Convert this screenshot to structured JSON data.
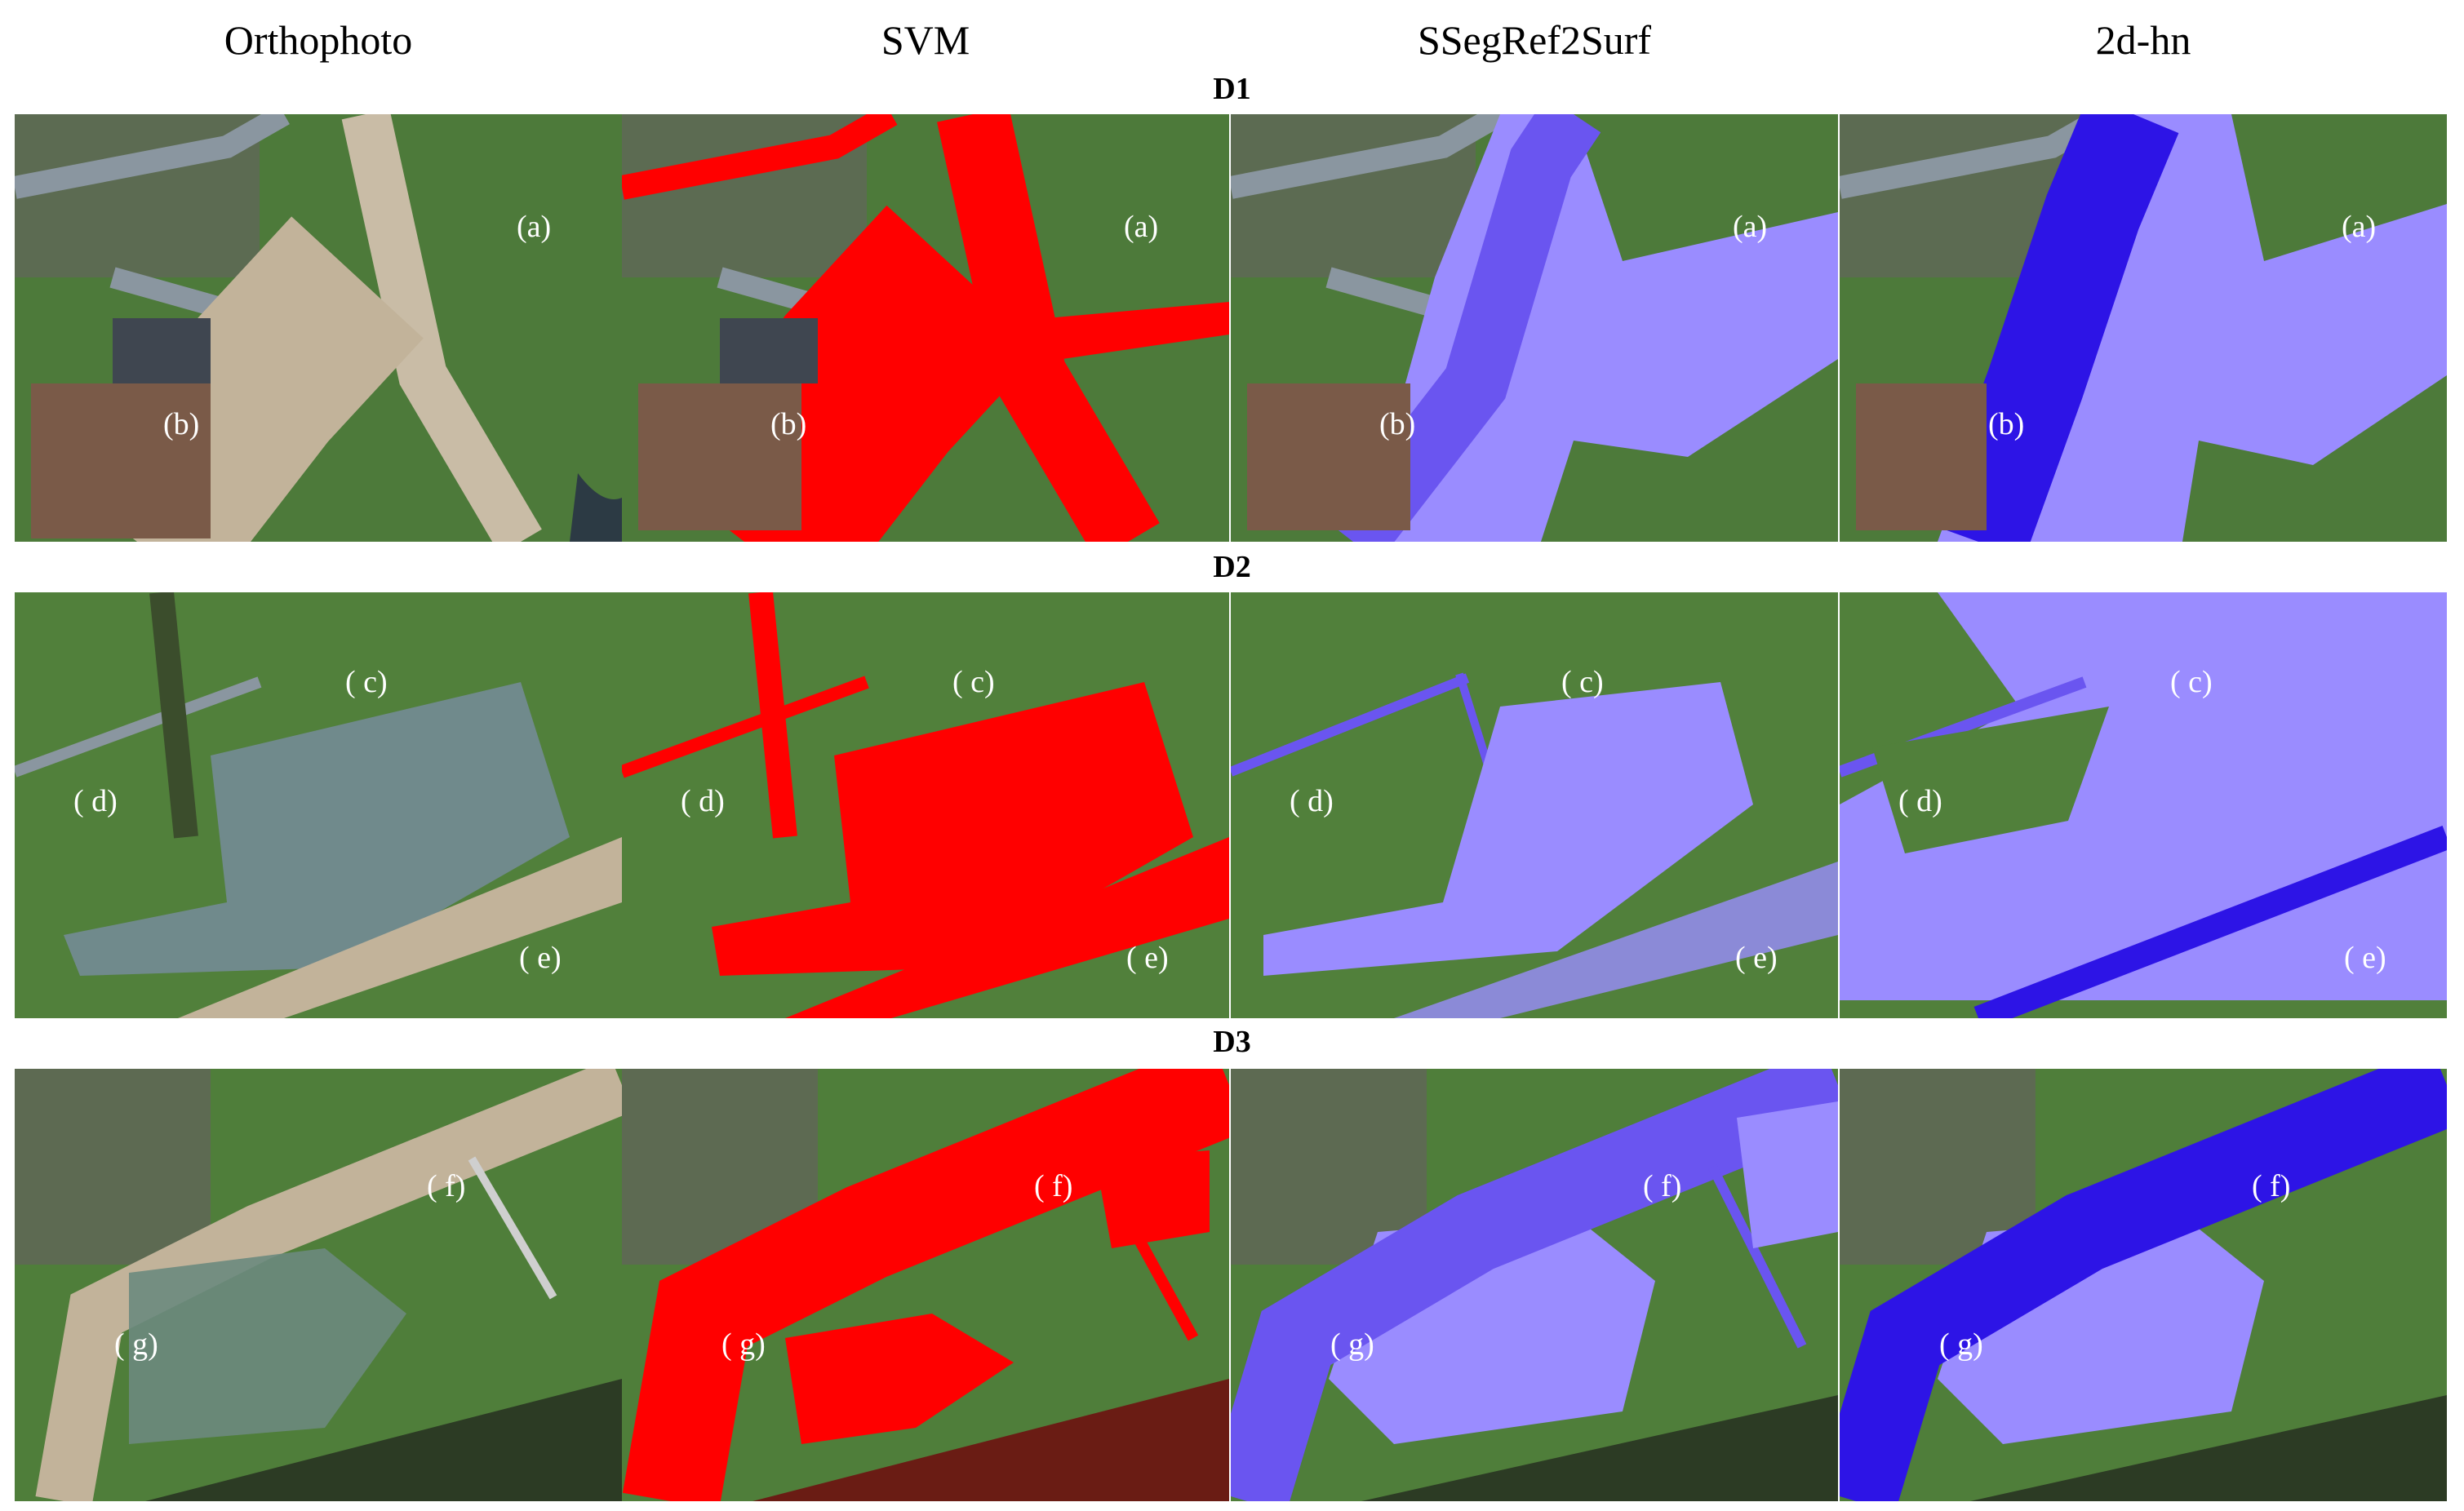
{
  "columns": [
    "Orthophoto",
    "SVM",
    "SSegRef2Surf",
    "2d-hn"
  ],
  "rows": [
    "D1",
    "D2",
    "D3"
  ],
  "labels": {
    "a": "(a)",
    "b": "(b)",
    "c": "( c)",
    "d": "( d)",
    "e": "( e)",
    "f": "( f)",
    "g": "( g)"
  },
  "colors": {
    "svm_overlay": "#ff0000",
    "flood_light": "#9a8cff",
    "flood_dark": "#2d14e6",
    "field_green": "#4d7a3a",
    "water_brown": "#b9a88f"
  }
}
